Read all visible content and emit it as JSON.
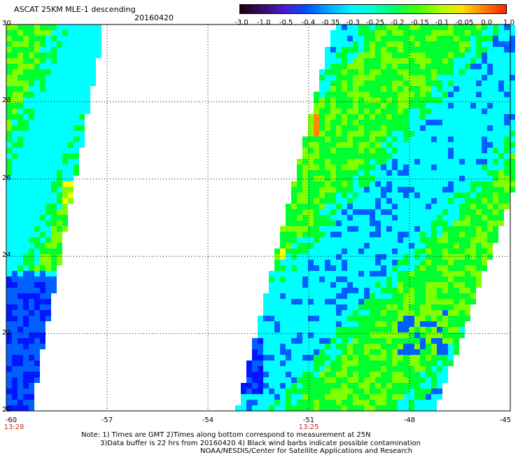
{
  "header": {
    "title": "ASCAT 25KM MLE-1 descending",
    "date": "20160420"
  },
  "colorbar": {
    "labels": [
      "-3.0",
      "-1.0",
      "-0.5",
      "-0.4",
      "-0.35",
      "-0.3",
      "-0.25",
      "-0.2",
      "-0.15",
      "-0.1",
      "-0.05",
      "0.0",
      "1.0"
    ],
    "colors": [
      "#1a0012",
      "#3a0a6a",
      "#4a1ad0",
      "#0050ff",
      "#00a8ff",
      "#00f4ff",
      "#00ffd0",
      "#00ff60",
      "#40ff00",
      "#a8ff00",
      "#ffe000",
      "#ff8000",
      "#ff2000"
    ]
  },
  "map": {
    "lat_range": [
      20,
      30
    ],
    "lon_range": [
      -60,
      -45
    ],
    "grid": true,
    "lat_ticks": [
      "20",
      "22",
      "24",
      "26",
      "28",
      "30"
    ],
    "lon_ticks": [
      "-60",
      "-57",
      "-54",
      "-51",
      "-48",
      "-45"
    ],
    "swath_times": [
      {
        "lon": -60,
        "time": "13:28"
      },
      {
        "lon": -51,
        "time": "13:25"
      }
    ],
    "value_colors": {
      "deep_blue": "#0016ff",
      "blue": "#0060ff",
      "cyan": "#00ffff",
      "green": "#00ff30",
      "lime": "#80ff00",
      "yellow": "#ffff00",
      "orange": "#ff8800"
    }
  },
  "notes": {
    "line1": "Note: 1) Times are GMT 2)Times along bottom correspond to measurement at 25N",
    "line2": "3)Data buffer is 22 hrs from 20160420 4) Black wind barbs indicate possible contamination",
    "line3": "NOAA/NESDIS/Center for Satellite Applications and Research"
  }
}
